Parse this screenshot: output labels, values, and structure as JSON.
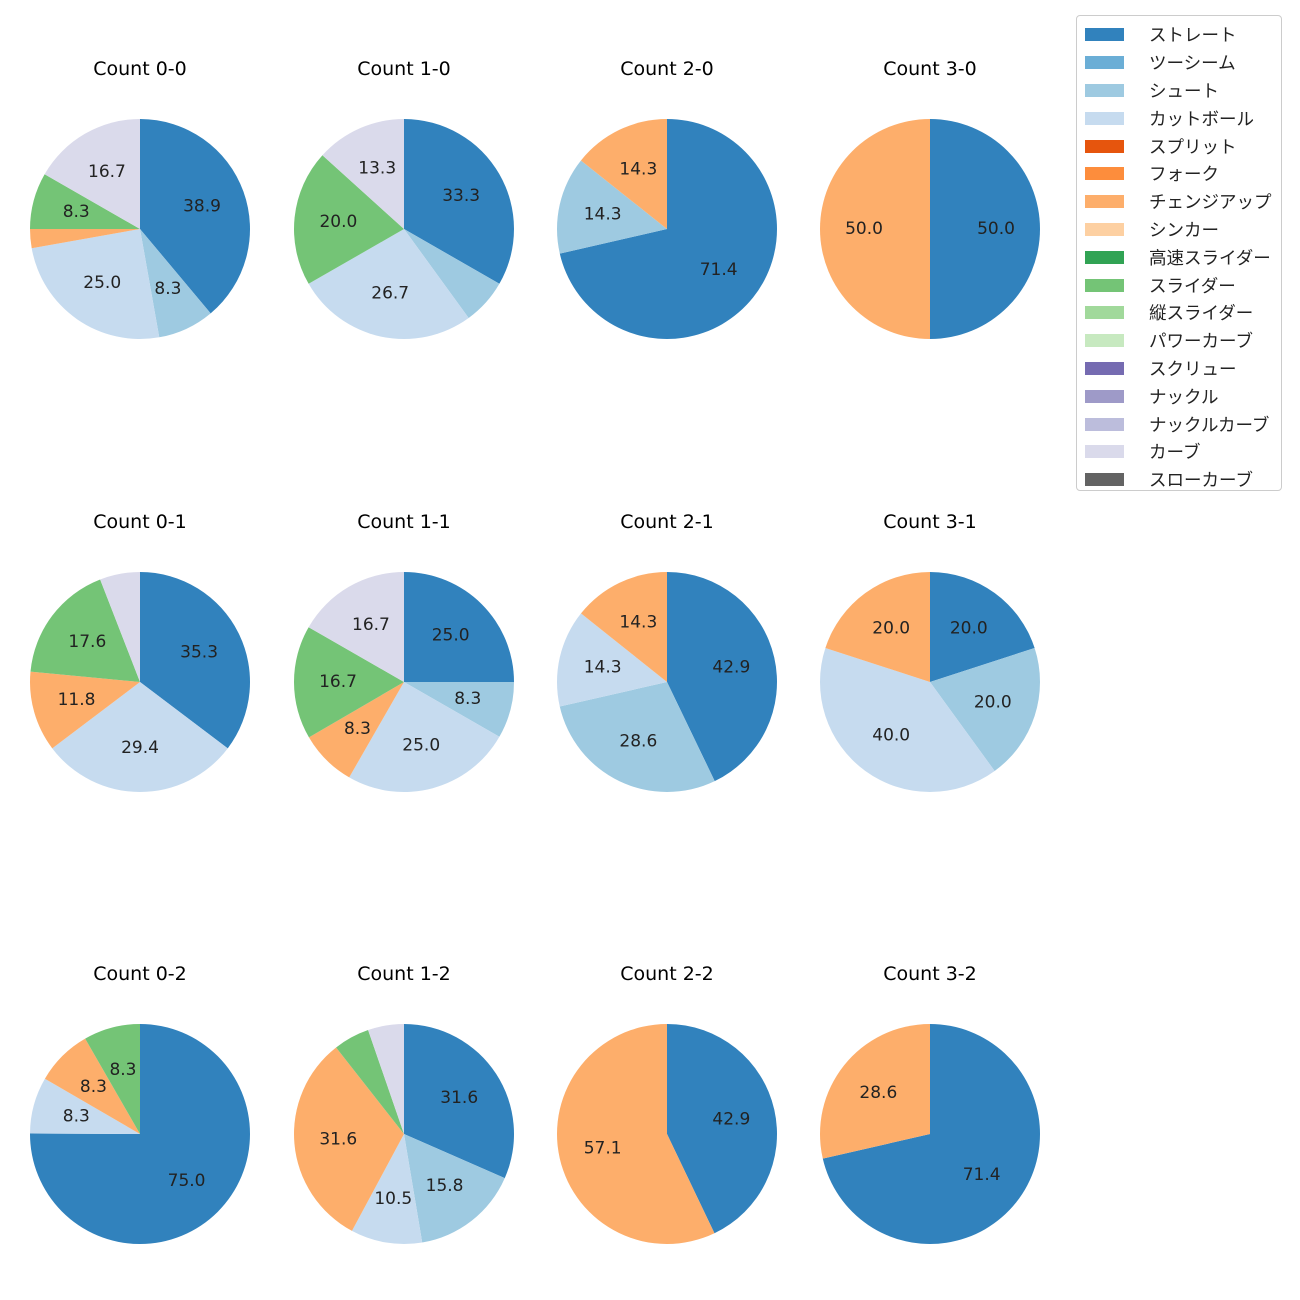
{
  "chart_data": {
    "type": "pie",
    "start_angle": 90,
    "direction": "clockwise",
    "label_format": "percent, 1 decimal; small slices unlabeled",
    "legend_placement": "top-right",
    "legend": [
      {
        "name": "ストレート",
        "color": "#3182bd"
      },
      {
        "name": "ツーシーム",
        "color": "#6baed6"
      },
      {
        "name": "シュート",
        "color": "#9ecae1"
      },
      {
        "name": "カットボール",
        "color": "#c6dbef"
      },
      {
        "name": "スプリット",
        "color": "#e6550d"
      },
      {
        "name": "フォーク",
        "color": "#fd8d3c"
      },
      {
        "name": "チェンジアップ",
        "color": "#fdae6b"
      },
      {
        "name": "シンカー",
        "color": "#fdd0a2"
      },
      {
        "name": "高速スライダー",
        "color": "#31a354"
      },
      {
        "name": "スライダー",
        "color": "#74c476"
      },
      {
        "name": "縦スライダー",
        "color": "#a1d99b"
      },
      {
        "name": "パワーカーブ",
        "color": "#c7e9c0"
      },
      {
        "name": "スクリュー",
        "color": "#756bb1"
      },
      {
        "name": "ナックル",
        "color": "#9e9ac8"
      },
      {
        "name": "ナックルカーブ",
        "color": "#bcbddc"
      },
      {
        "name": "カーブ",
        "color": "#dadaeb"
      },
      {
        "name": "スローカーブ",
        "color": "#636363"
      }
    ],
    "pies": [
      {
        "title": "Count 0-0",
        "slices": [
          [
            "ストレート",
            38.9
          ],
          [
            "シュート",
            8.3
          ],
          [
            "カットボール",
            25.0
          ],
          [
            "チェンジアップ",
            2.8
          ],
          [
            "スライダー",
            8.3
          ],
          [
            "カーブ",
            16.7
          ]
        ]
      },
      {
        "title": "Count 1-0",
        "slices": [
          [
            "ストレート",
            33.3
          ],
          [
            "シュート",
            6.7
          ],
          [
            "カットボール",
            26.7
          ],
          [
            "スライダー",
            20.0
          ],
          [
            "カーブ",
            13.3
          ]
        ]
      },
      {
        "title": "Count 2-0",
        "slices": [
          [
            "ストレート",
            71.4
          ],
          [
            "シュート",
            14.3
          ],
          [
            "チェンジアップ",
            14.3
          ]
        ]
      },
      {
        "title": "Count 3-0",
        "slices": [
          [
            "ストレート",
            50.0
          ],
          [
            "チェンジアップ",
            50.0
          ]
        ]
      },
      {
        "title": "Count 0-1",
        "slices": [
          [
            "ストレート",
            35.3
          ],
          [
            "カットボール",
            29.4
          ],
          [
            "チェンジアップ",
            11.8
          ],
          [
            "スライダー",
            17.6
          ],
          [
            "カーブ",
            5.9
          ]
        ]
      },
      {
        "title": "Count 1-1",
        "slices": [
          [
            "ストレート",
            25.0
          ],
          [
            "シュート",
            8.3
          ],
          [
            "カットボール",
            25.0
          ],
          [
            "チェンジアップ",
            8.3
          ],
          [
            "スライダー",
            16.7
          ],
          [
            "カーブ",
            16.7
          ]
        ]
      },
      {
        "title": "Count 2-1",
        "slices": [
          [
            "ストレート",
            42.9
          ],
          [
            "シュート",
            28.6
          ],
          [
            "カットボール",
            14.3
          ],
          [
            "チェンジアップ",
            14.3
          ]
        ]
      },
      {
        "title": "Count 3-1",
        "slices": [
          [
            "ストレート",
            20.0
          ],
          [
            "シュート",
            20.0
          ],
          [
            "カットボール",
            40.0
          ],
          [
            "チェンジアップ",
            20.0
          ]
        ]
      },
      {
        "title": "Count 0-2",
        "slices": [
          [
            "ストレート",
            75.0
          ],
          [
            "カットボール",
            8.3
          ],
          [
            "チェンジアップ",
            8.3
          ],
          [
            "スライダー",
            8.3
          ]
        ]
      },
      {
        "title": "Count 1-2",
        "slices": [
          [
            "ストレート",
            31.6
          ],
          [
            "シュート",
            15.8
          ],
          [
            "カットボール",
            10.5
          ],
          [
            "チェンジアップ",
            31.6
          ],
          [
            "スライダー",
            5.3
          ],
          [
            "カーブ",
            5.3
          ]
        ]
      },
      {
        "title": "Count 2-2",
        "slices": [
          [
            "ストレート",
            42.9
          ],
          [
            "チェンジアップ",
            57.1
          ]
        ]
      },
      {
        "title": "Count 3-2",
        "slices": [
          [
            "ストレート",
            71.4
          ],
          [
            "チェンジアップ",
            28.6
          ]
        ]
      }
    ]
  }
}
